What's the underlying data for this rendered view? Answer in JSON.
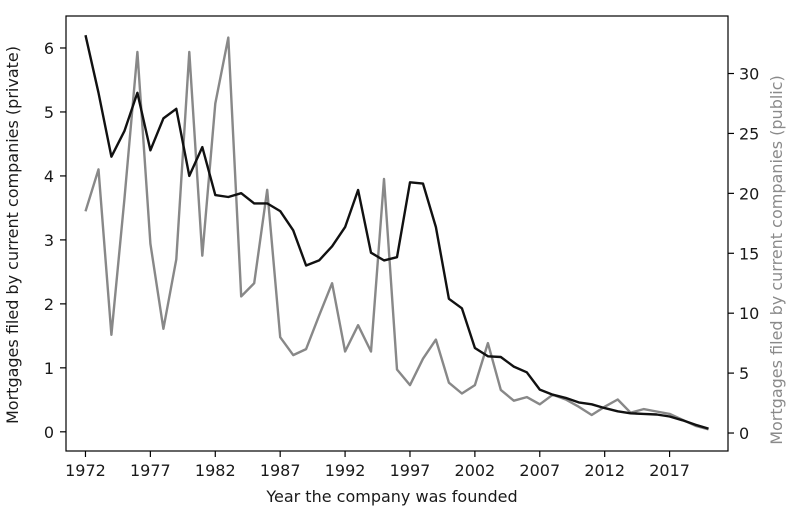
{
  "chart_data": {
    "type": "line",
    "title": "",
    "xlabel": "Year the company was founded",
    "ylabel_left": "Mortgages filed by current companies (private)",
    "ylabel_right": "Mortgages filed by current companies (public)",
    "xlim": [
      1970.5,
      2021.5
    ],
    "ylim_left": [
      -0.3,
      6.5
    ],
    "ylim_right": [
      -1.5,
      34.8
    ],
    "xticks": [
      1972,
      1977,
      1982,
      1987,
      1992,
      1997,
      2002,
      2007,
      2012,
      2017
    ],
    "yticks_left": [
      0,
      1,
      2,
      3,
      4,
      5,
      6
    ],
    "yticks_right": [
      0,
      5,
      10,
      15,
      20,
      25,
      30
    ],
    "grid": false,
    "legend": "none",
    "colors": {
      "private": "#111111",
      "public": "#888888",
      "right_axis_label": "#8a8a8a"
    },
    "x": [
      1972,
      1973,
      1974,
      1975,
      1976,
      1977,
      1978,
      1979,
      1980,
      1981,
      1982,
      1983,
      1984,
      1985,
      1986,
      1987,
      1988,
      1989,
      1990,
      1991,
      1992,
      1993,
      1994,
      1995,
      1996,
      1997,
      1998,
      1999,
      2000,
      2001,
      2002,
      2003,
      2004,
      2005,
      2006,
      2007,
      2008,
      2009,
      2010,
      2011,
      2012,
      2013,
      2014,
      2015,
      2016,
      2017,
      2018,
      2019,
      2020
    ],
    "series": [
      {
        "axis": "left",
        "values": [
          6.2,
          5.3,
          4.3,
          4.7,
          5.3,
          4.4,
          4.9,
          5.05,
          4.0,
          4.45,
          3.7,
          3.67,
          3.73,
          3.57,
          3.57,
          3.45,
          3.15,
          2.6,
          2.68,
          2.9,
          3.2,
          3.78,
          2.8,
          2.68,
          2.73,
          3.9,
          3.88,
          3.2,
          2.08,
          1.93,
          1.31,
          1.18,
          1.17,
          1.02,
          0.93,
          0.66,
          0.58,
          0.53,
          0.46,
          0.43,
          0.37,
          0.32,
          0.29,
          0.28,
          0.27,
          0.24,
          0.18,
          0.11,
          0.05
        ]
      },
      {
        "axis": "right",
        "values": [
          18.5,
          22.0,
          8.2,
          19.5,
          31.8,
          15.8,
          8.7,
          14.5,
          31.8,
          14.8,
          27.5,
          33.0,
          11.4,
          12.5,
          20.3,
          8.0,
          6.5,
          7.0,
          9.8,
          12.5,
          6.8,
          9.0,
          6.8,
          21.2,
          5.3,
          4.0,
          6.2,
          7.8,
          4.2,
          3.3,
          4.0,
          7.5,
          3.6,
          2.7,
          3.0,
          2.4,
          3.2,
          2.8,
          2.2,
          1.5,
          2.2,
          2.8,
          1.7,
          2.0,
          1.8,
          1.6,
          1.1,
          0.6,
          0.3
        ]
      }
    ]
  }
}
